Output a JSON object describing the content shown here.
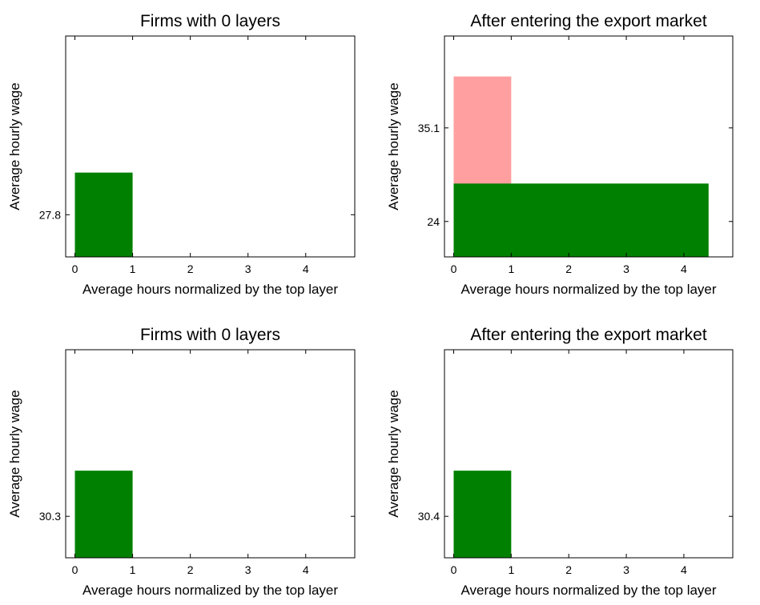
{
  "chart_data": [
    {
      "type": "histogram",
      "title": "Firms with 0 layers",
      "xlabel": "Average hours normalized by the top layer",
      "ylabel": "Average hourly wage",
      "series": [
        {
          "color": "#008000",
          "bins": [
            0,
            1
          ],
          "values": [
            32.8
          ]
        }
      ],
      "xlim": [
        -0.16,
        4.85
      ],
      "ylim": [
        22.8,
        49.0
      ],
      "xticks": [
        0,
        1,
        2,
        3,
        4
      ],
      "yticks": [
        27.8
      ]
    },
    {
      "type": "histogram",
      "title": "After entering the export market",
      "xlabel": "Average hours normalized by the top layer",
      "ylabel": "Average hourly wage",
      "series": [
        {
          "color": "#ff9f9f",
          "bins": [
            0,
            1
          ],
          "values": [
            41.2
          ]
        },
        {
          "color": "#008000",
          "bins": [
            0,
            4.43
          ],
          "values": [
            28.5
          ]
        }
      ],
      "xlim": [
        -0.16,
        4.85
      ],
      "ylim": [
        19.8,
        46.0
      ],
      "xticks": [
        0,
        1,
        2,
        3,
        4
      ],
      "yticks": [
        24,
        35.1
      ]
    },
    {
      "type": "histogram",
      "title": "Firms with 0 layers",
      "xlabel": "Average hours normalized by the top layer",
      "ylabel": "Average hourly wage",
      "series": [
        {
          "color": "#008000",
          "bins": [
            0,
            1
          ],
          "values": [
            35.7
          ]
        }
      ],
      "xlim": [
        -0.16,
        4.85
      ],
      "ylim": [
        25.4,
        50.0
      ],
      "xticks": [
        0,
        1,
        2,
        3,
        4
      ],
      "yticks": [
        30.3
      ]
    },
    {
      "type": "histogram",
      "title": "After entering the export market",
      "xlabel": "Average hours normalized by the top layer",
      "ylabel": "Average hourly wage",
      "series": [
        {
          "color": "#008000",
          "bins": [
            0,
            1
          ],
          "values": [
            35.8
          ]
        }
      ],
      "xlim": [
        -0.16,
        4.85
      ],
      "ylim": [
        25.5,
        50.1
      ],
      "xticks": [
        0,
        1,
        2,
        3,
        4
      ],
      "yticks": [
        30.4
      ]
    }
  ]
}
